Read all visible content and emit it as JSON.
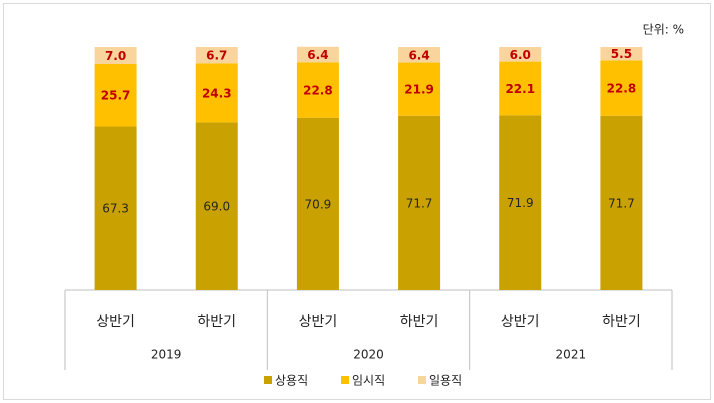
{
  "chart_data": {
    "type": "stacked_bar",
    "unit_note": "단위: %",
    "categories": [
      "상반기",
      "하반기",
      "상반기",
      "하반기",
      "상반기",
      "하반기"
    ],
    "groups": [
      "2019",
      "2020",
      "2021"
    ],
    "ylim": [
      0,
      100
    ],
    "series": [
      {
        "name": "상용직",
        "color": "#C9A100",
        "label_color": "#262626",
        "values": [
          67.3,
          69.0,
          70.9,
          71.7,
          71.9,
          71.7
        ],
        "value_labels": [
          "67.3",
          "69.0",
          "70.9",
          "71.7",
          "71.9",
          "71.7"
        ]
      },
      {
        "name": "임시직",
        "color": "#FFC000",
        "label_color": "#C00000",
        "values": [
          25.7,
          24.3,
          22.8,
          21.9,
          22.1,
          22.8
        ],
        "value_labels": [
          "25.7",
          "24.3",
          "22.8",
          "21.9",
          "22.1",
          "22.8"
        ]
      },
      {
        "name": "일용직",
        "color": "#F9D49C",
        "label_color": "#C00000",
        "values": [
          7.0,
          6.7,
          6.4,
          6.4,
          6.0,
          5.5
        ],
        "value_labels": [
          "7.0",
          "6.7",
          "6.4",
          "6.4",
          "6.0",
          "5.5"
        ]
      }
    ]
  }
}
